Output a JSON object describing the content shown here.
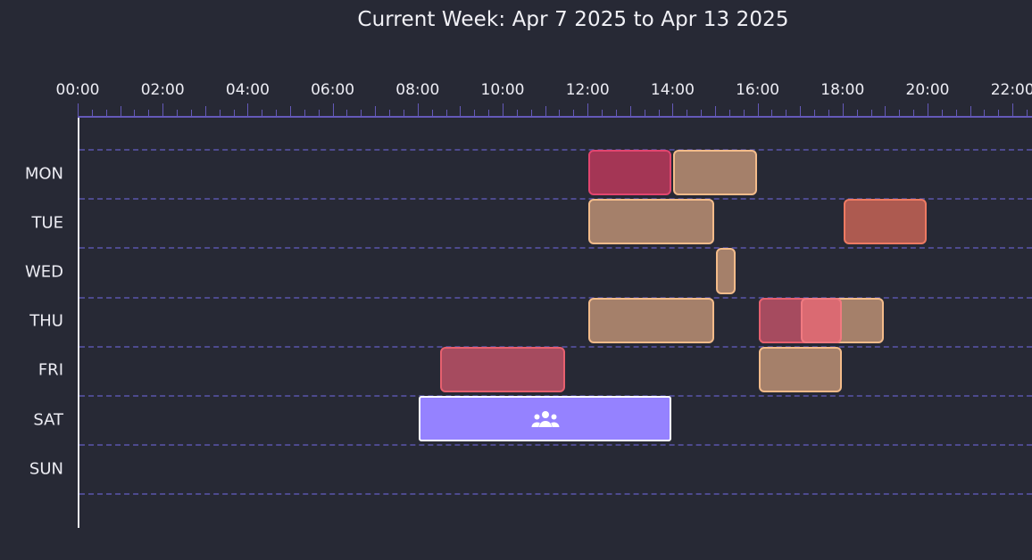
{
  "title": "Current Week: Apr 7 2025 to Apr 13 2025",
  "hour_labels": [
    "00:00",
    "02:00",
    "04:00",
    "06:00",
    "08:00",
    "10:00",
    "12:00",
    "14:00",
    "16:00",
    "18:00",
    "20:00",
    "22:00"
  ],
  "days": [
    "MON",
    "TUE",
    "WED",
    "THU",
    "FRI",
    "SAT",
    "SUN"
  ],
  "colors": {
    "background": "#272935",
    "ruler": "#6459b9",
    "grid": "#4d4a8e",
    "axis": "#e8e8ee",
    "crimson_fill": "#a43655",
    "crimson_border": "#e2456f",
    "rose_fill": "#a64b5f",
    "rose_border": "#e6606f",
    "tan_fill": "#a5806a",
    "tan_border": "#f3bb8a",
    "brick_fill": "#ad5a50",
    "brick_border": "#ee7a62",
    "salmon_fill": "#da6a72",
    "salmon_border": "#f07a80",
    "violet_fill": "#9582ff",
    "violet_border": "#ffffff"
  },
  "events": [
    {
      "day": "MON",
      "start": "12:00",
      "end": "14:00",
      "color": "crimson"
    },
    {
      "day": "MON",
      "start": "14:00",
      "end": "16:00",
      "color": "tan"
    },
    {
      "day": "TUE",
      "start": "12:00",
      "end": "15:00",
      "color": "tan"
    },
    {
      "day": "TUE",
      "start": "18:00",
      "end": "20:00",
      "color": "brick"
    },
    {
      "day": "WED",
      "start": "15:00",
      "end": "15:30",
      "color": "tan"
    },
    {
      "day": "THU",
      "start": "12:00",
      "end": "15:00",
      "color": "tan"
    },
    {
      "day": "THU",
      "start": "16:00",
      "end": "19:00",
      "color": "tan"
    },
    {
      "day": "THU",
      "start": "16:00",
      "end": "18:00",
      "color": "rose"
    },
    {
      "day": "THU",
      "start": "17:00",
      "end": "18:00",
      "color": "salmon"
    },
    {
      "day": "FRI",
      "start": "08:30",
      "end": "11:30",
      "color": "rose"
    },
    {
      "day": "FRI",
      "start": "16:00",
      "end": "18:00",
      "color": "tan"
    },
    {
      "day": "SAT",
      "start": "08:00",
      "end": "14:00",
      "color": "violet",
      "icon": "group-icon"
    }
  ]
}
